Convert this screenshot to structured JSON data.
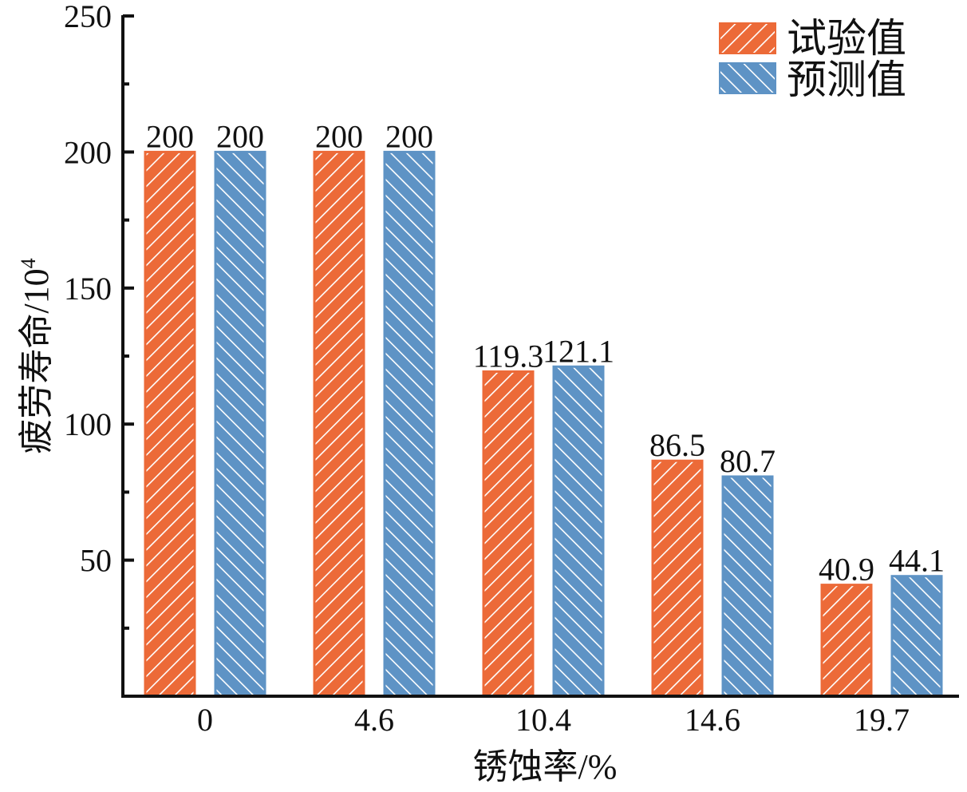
{
  "chart_data": {
    "type": "bar",
    "categories": [
      "0",
      "4.6",
      "10.4",
      "14.6",
      "19.7"
    ],
    "series": [
      {
        "name": "试验值",
        "values": [
          200,
          200,
          119.3,
          86.5,
          40.9
        ],
        "color": "#EC6A38",
        "hatch": "forward"
      },
      {
        "name": "预测值",
        "values": [
          200,
          200,
          121.1,
          80.7,
          44.1
        ],
        "color": "#5E93C5",
        "hatch": "backward"
      }
    ],
    "data_labels": [
      [
        "200",
        "200",
        "119.3",
        "86.5",
        "40.9"
      ],
      [
        "200",
        "200",
        "121.1",
        "80.7",
        "44.1"
      ]
    ],
    "title": "",
    "xlabel": "锈蚀率/%",
    "ylabel": "疲劳寿命/10",
    "ylabel_superscript": "4",
    "ylim": [
      0,
      250
    ],
    "yticks": [
      "50",
      "100",
      "150",
      "200",
      "250"
    ],
    "grid": false,
    "legend_position": "top-right"
  }
}
